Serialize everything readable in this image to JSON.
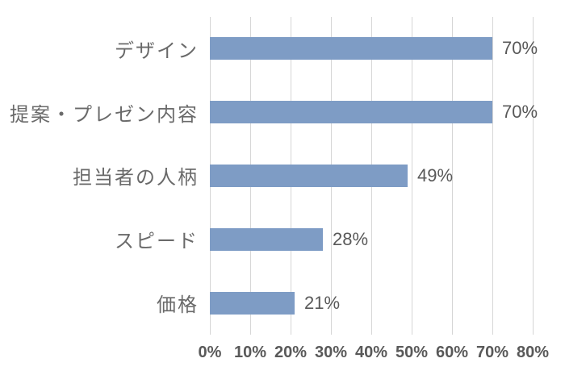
{
  "chart_data": {
    "type": "bar",
    "orientation": "horizontal",
    "title": "",
    "categories": [
      "デザイン",
      "提案・プレゼン内容",
      "担当者の人柄",
      "スピード",
      "価格"
    ],
    "values": [
      70,
      70,
      49,
      28,
      21
    ],
    "value_labels": [
      "70%",
      "70%",
      "49%",
      "28%",
      "21%"
    ],
    "x_tick_labels": [
      "0%",
      "10%",
      "20%",
      "30%",
      "40%",
      "50%",
      "60%",
      "70%",
      "80%"
    ],
    "x_tick_values": [
      0,
      10,
      20,
      30,
      40,
      50,
      60,
      70,
      80
    ],
    "xlim": [
      0,
      80
    ],
    "grid": "vertical",
    "legend": "none",
    "colors": {
      "bar": "#7E9CC5",
      "gridline": "#D6D6D6",
      "category_label": "#6A6A6A",
      "value_label": "#595959",
      "tick_label": "#595959",
      "background": "#FFFFFF"
    }
  }
}
